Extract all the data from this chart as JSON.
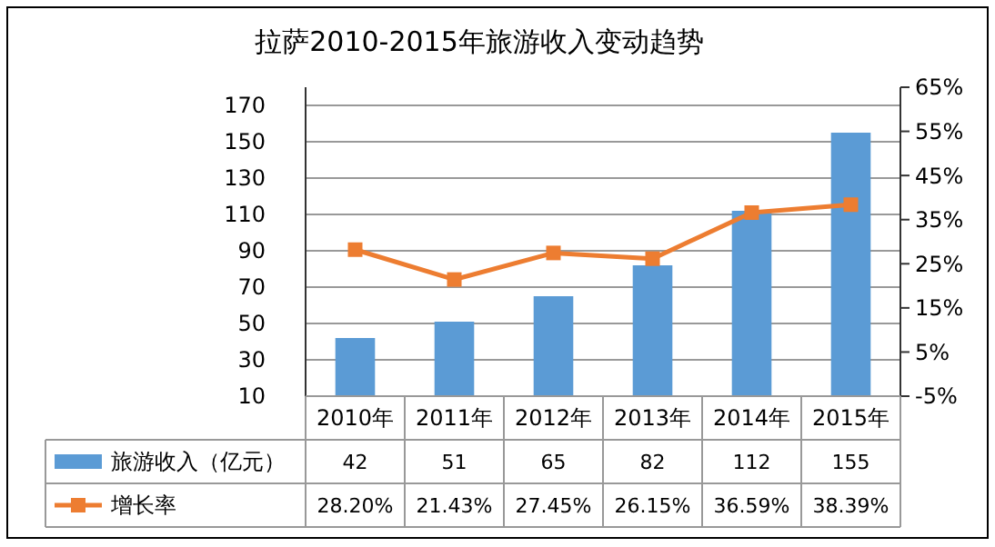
{
  "chart_data": {
    "type": "bar",
    "title": "拉萨2010-2015年旅游收入变动趋势",
    "categories": [
      "2010年",
      "2011年",
      "2012年",
      "2013年",
      "2014年",
      "2015年"
    ],
    "series": [
      {
        "name": "旅游收入（亿元）",
        "color": "#5b9bd5",
        "values": [
          42,
          51,
          65,
          82,
          112,
          155
        ]
      },
      {
        "name": "增长率",
        "type": "line",
        "axis": "y2",
        "color": "#ed7d31",
        "marker": "square",
        "values": [
          28.2,
          21.43,
          27.45,
          26.15,
          36.59,
          38.39
        ],
        "value_labels": [
          "28.20%",
          "21.43%",
          "27.45%",
          "26.15%",
          "36.59%",
          "38.39%"
        ]
      }
    ],
    "ylim": [
      10,
      180
    ],
    "yticks": [
      10,
      30,
      50,
      70,
      90,
      110,
      130,
      150,
      170
    ],
    "y2lim": [
      -5,
      65
    ],
    "y2ticks": [
      {
        "value": -5,
        "label": "-5%"
      },
      {
        "value": 5,
        "label": "5%"
      },
      {
        "value": 15,
        "label": "15%"
      },
      {
        "value": 25,
        "label": "25%"
      },
      {
        "value": 35,
        "label": "35%"
      },
      {
        "value": 45,
        "label": "45%"
      },
      {
        "value": 55,
        "label": "55%"
      },
      {
        "value": 65,
        "label": "65%"
      }
    ],
    "grid": "y",
    "legend": "bottom",
    "data_labels": true
  }
}
